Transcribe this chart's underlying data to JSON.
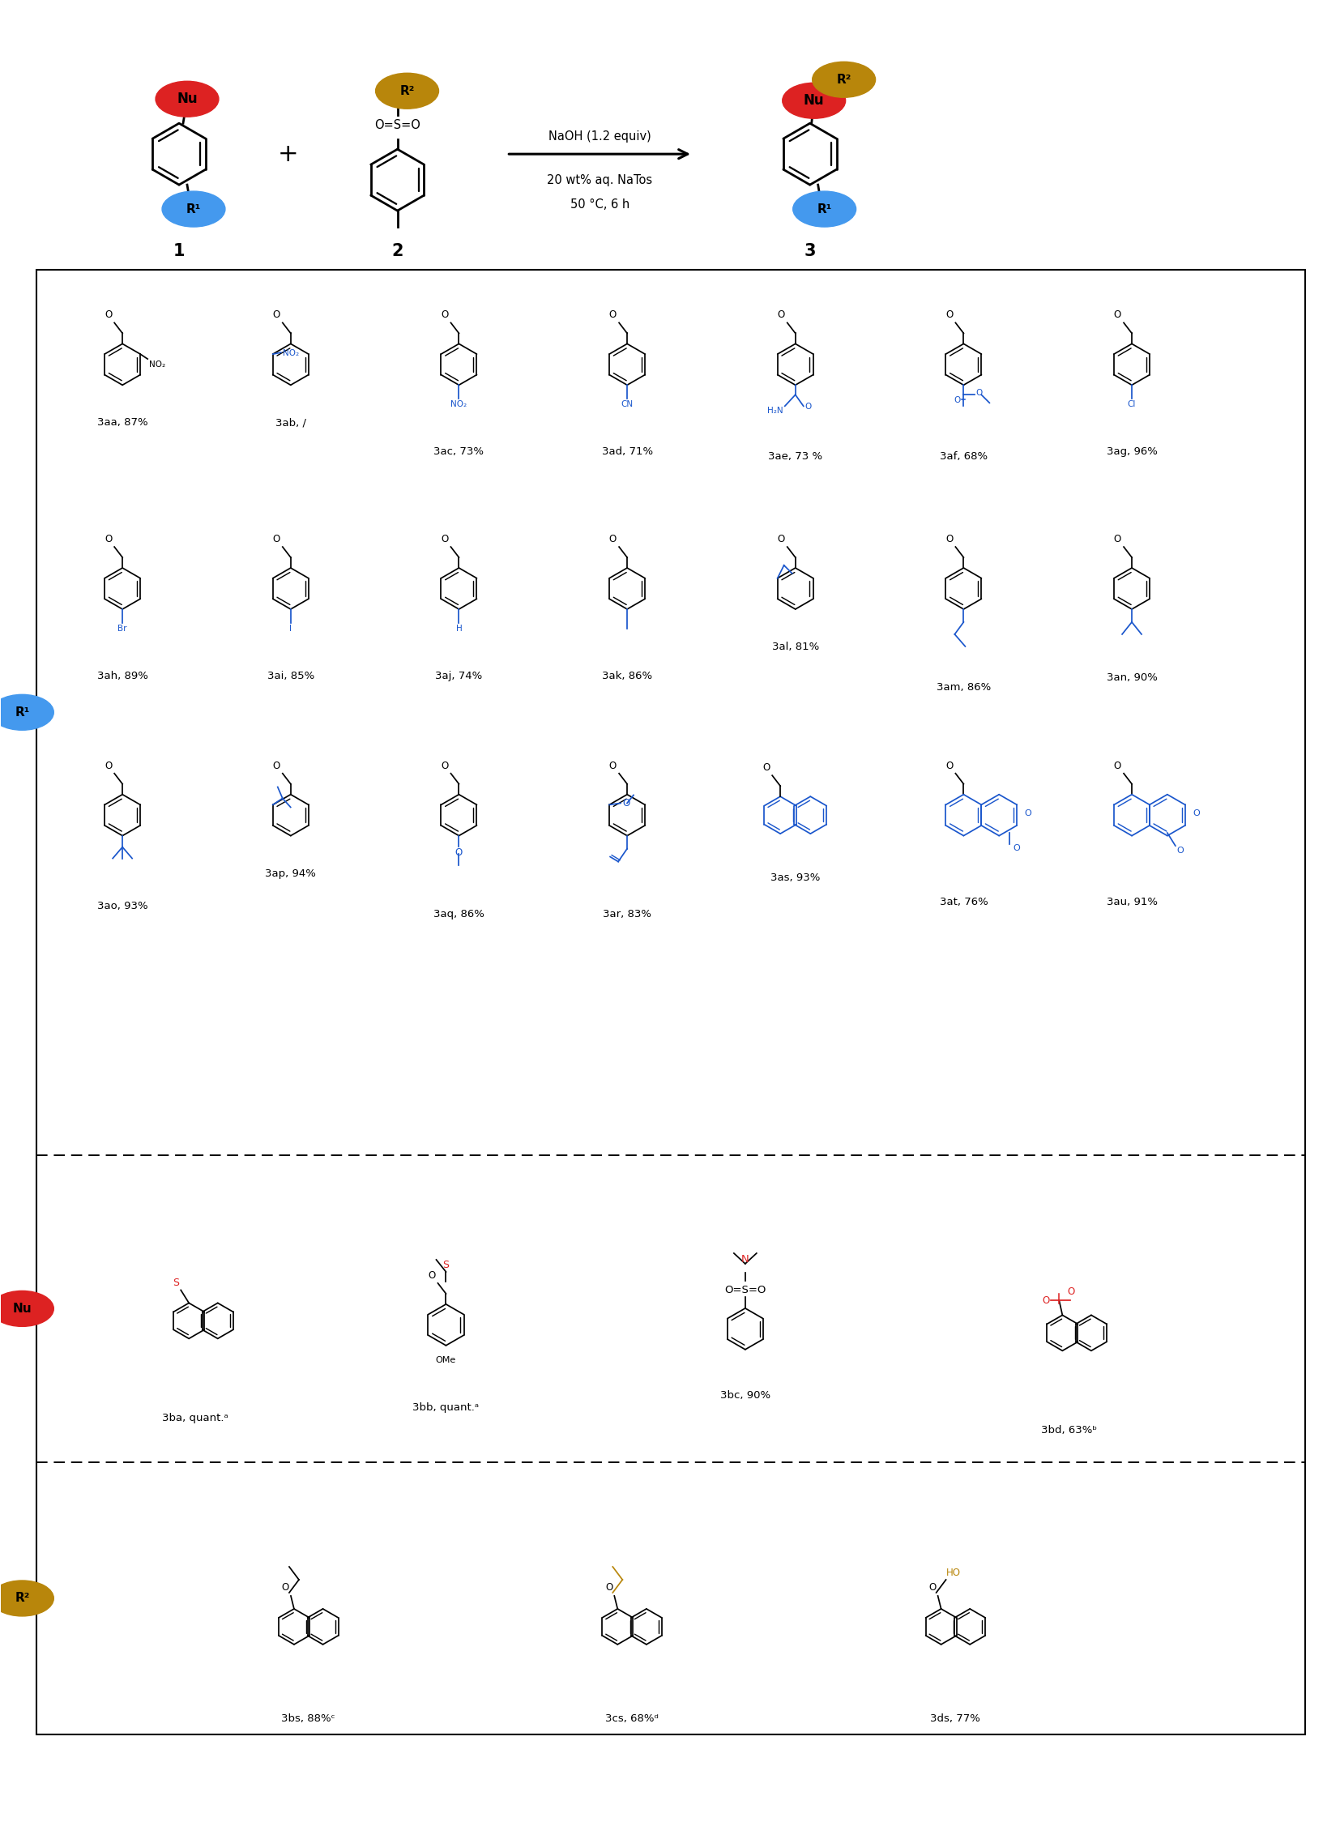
{
  "bg": "#ffffff",
  "blue": "#1a56cc",
  "red": "#dd2222",
  "gold": "#b8860b",
  "sky": "#4499ee",
  "arrow_top": "NaOH (1.2 equiv)",
  "arrow_bot1": "20 wt% aq. NaTos",
  "arrow_bot2": "50 °C, 6 h",
  "row1": [
    [
      "3aa",
      "87%"
    ],
    [
      "3ab",
      "/"
    ],
    [
      "3ac",
      "73%"
    ],
    [
      "3ad",
      "71%"
    ],
    [
      "3ae",
      "73 %"
    ],
    [
      "3af",
      "68%"
    ],
    [
      "3ag",
      "96%"
    ]
  ],
  "row2": [
    [
      "3ah",
      "89%"
    ],
    [
      "3ai",
      "85%"
    ],
    [
      "3aj",
      "74%"
    ],
    [
      "3ak",
      "86%"
    ],
    [
      "3al",
      "81%"
    ],
    [
      "3am",
      "86%"
    ],
    [
      "3an",
      "90%"
    ]
  ],
  "row3": [
    [
      "3ao",
      "93%"
    ],
    [
      "3ap",
      "94%"
    ],
    [
      "3aq",
      "86%"
    ],
    [
      "3ar",
      "83%"
    ],
    [
      "3as",
      "93%"
    ],
    [
      "3at",
      "76%"
    ],
    [
      "3au",
      "91%"
    ]
  ],
  "row4": [
    [
      "3ba",
      "quant.ᵃ"
    ],
    [
      "3bb",
      "quant.ᵃ"
    ],
    [
      "3bc",
      "90%"
    ],
    [
      "3bd",
      "63%ᵇ"
    ]
  ],
  "row5": [
    [
      "3bs",
      "88%ᶜ"
    ],
    [
      "3cs",
      "68%ᵈ"
    ],
    [
      "3ds",
      "77%"
    ]
  ]
}
